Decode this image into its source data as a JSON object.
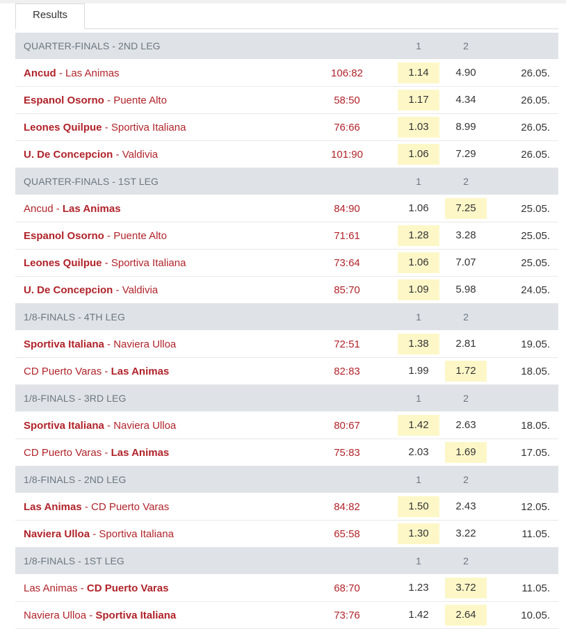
{
  "tabs": {
    "results_label": "Results"
  },
  "colors": {
    "accent": "#b0232a",
    "header_bg": "#dfe3e7",
    "highlight": "#fdf7c8"
  },
  "sections": [
    {
      "title": "QUARTER-FINALS - 2ND LEG",
      "col1": "1",
      "col2": "2",
      "matches": [
        {
          "home": "Ancud",
          "away": "Las Animas",
          "winner": "home",
          "score": "106:82",
          "odd1": "1.14",
          "odd2": "4.90",
          "date": "26.05."
        },
        {
          "home": "Espanol Osorno",
          "away": "Puente Alto",
          "winner": "home",
          "score": "58:50",
          "odd1": "1.17",
          "odd2": "4.34",
          "date": "26.05."
        },
        {
          "home": "Leones Quilpue",
          "away": "Sportiva Italiana",
          "winner": "home",
          "score": "76:66",
          "odd1": "1.03",
          "odd2": "8.99",
          "date": "26.05."
        },
        {
          "home": "U. De Concepcion",
          "away": "Valdivia",
          "winner": "home",
          "score": "101:90",
          "odd1": "1.06",
          "odd2": "7.29",
          "date": "26.05."
        }
      ]
    },
    {
      "title": "QUARTER-FINALS - 1ST LEG",
      "col1": "1",
      "col2": "2",
      "matches": [
        {
          "home": "Ancud",
          "away": "Las Animas",
          "winner": "away",
          "score": "84:90",
          "odd1": "1.06",
          "odd2": "7.25",
          "date": "25.05."
        },
        {
          "home": "Espanol Osorno",
          "away": "Puente Alto",
          "winner": "home",
          "score": "71:61",
          "odd1": "1.28",
          "odd2": "3.28",
          "date": "25.05."
        },
        {
          "home": "Leones Quilpue",
          "away": "Sportiva Italiana",
          "winner": "home",
          "score": "73:64",
          "odd1": "1.06",
          "odd2": "7.07",
          "date": "25.05."
        },
        {
          "home": "U. De Concepcion",
          "away": "Valdivia",
          "winner": "home",
          "score": "85:70",
          "odd1": "1.09",
          "odd2": "5.98",
          "date": "24.05."
        }
      ]
    },
    {
      "title": "1/8-FINALS - 4TH LEG",
      "col1": "1",
      "col2": "2",
      "matches": [
        {
          "home": "Sportiva Italiana",
          "away": "Naviera Ulloa",
          "winner": "home",
          "score": "72:51",
          "odd1": "1.38",
          "odd2": "2.81",
          "date": "19.05."
        },
        {
          "home": "CD Puerto Varas",
          "away": "Las Animas",
          "winner": "away",
          "score": "82:83",
          "odd1": "1.99",
          "odd2": "1.72",
          "date": "18.05."
        }
      ]
    },
    {
      "title": "1/8-FINALS - 3RD LEG",
      "col1": "1",
      "col2": "2",
      "matches": [
        {
          "home": "Sportiva Italiana",
          "away": "Naviera Ulloa",
          "winner": "home",
          "score": "80:67",
          "odd1": "1.42",
          "odd2": "2.63",
          "date": "18.05."
        },
        {
          "home": "CD Puerto Varas",
          "away": "Las Animas",
          "winner": "away",
          "score": "75:83",
          "odd1": "2.03",
          "odd2": "1.69",
          "date": "17.05."
        }
      ]
    },
    {
      "title": "1/8-FINALS - 2ND LEG",
      "col1": "1",
      "col2": "2",
      "matches": [
        {
          "home": "Las Animas",
          "away": "CD Puerto Varas",
          "winner": "home",
          "score": "84:82",
          "odd1": "1.50",
          "odd2": "2.43",
          "date": "12.05."
        },
        {
          "home": "Naviera Ulloa",
          "away": "Sportiva Italiana",
          "winner": "home",
          "score": "65:58",
          "odd1": "1.30",
          "odd2": "3.22",
          "date": "11.05."
        }
      ]
    },
    {
      "title": "1/8-FINALS - 1ST LEG",
      "col1": "1",
      "col2": "2",
      "matches": [
        {
          "home": "Las Animas",
          "away": "CD Puerto Varas",
          "winner": "away",
          "score": "68:70",
          "odd1": "1.23",
          "odd2": "3.72",
          "date": "11.05."
        },
        {
          "home": "Naviera Ulloa",
          "away": "Sportiva Italiana",
          "winner": "away",
          "score": "73:76",
          "odd1": "1.42",
          "odd2": "2.64",
          "date": "10.05."
        }
      ]
    }
  ]
}
